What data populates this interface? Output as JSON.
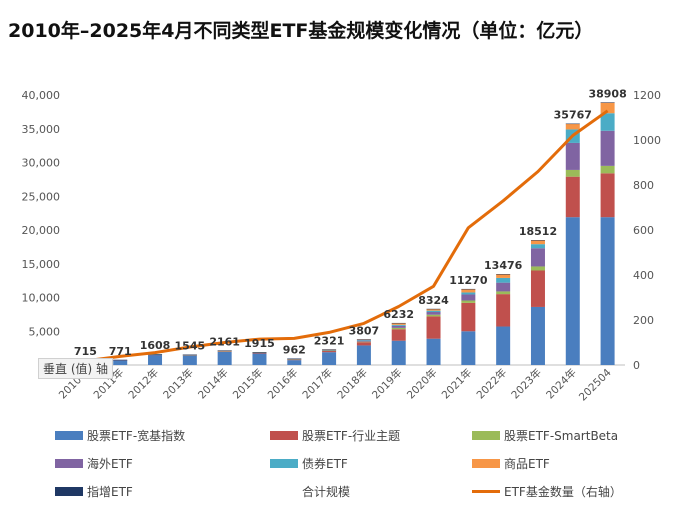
{
  "title": "2010年–2025年4月不同类型ETF基金规模变化情况（单位：亿元）",
  "axis_tag": "垂直 (值) 轴",
  "colors": {
    "broad": "#4a7ebf",
    "industry": "#c0504d",
    "smartbeta": "#9bbb59",
    "overseas": "#8064a2",
    "bond": "#4bacc6",
    "commodity": "#f79646",
    "enhanced": "#1f3864",
    "line": "#e36c0a"
  },
  "chart_data": {
    "type": "bar",
    "categories": [
      "2010年",
      "2011年",
      "2012年",
      "2013年",
      "2014年",
      "2015年",
      "2016年",
      "2017年",
      "2018年",
      "2019年",
      "2020年",
      "2021年",
      "2022年",
      "2023年",
      "2024年",
      "202504"
    ],
    "totals": [
      715,
      771,
      1608,
      1545,
      2161,
      1915,
      962,
      2321,
      3807,
      6232,
      8324,
      11270,
      13476,
      18512,
      35767,
      38908
    ],
    "totals_label": "合计规模",
    "series": [
      {
        "name": "股票ETF-宽基指数",
        "color_key": "broad",
        "values": [
          650,
          700,
          1480,
          1400,
          1950,
          1700,
          720,
          1900,
          2900,
          3600,
          3900,
          5000,
          5700,
          8600,
          21900,
          21900
        ]
      },
      {
        "name": "股票ETF-行业主题",
        "color_key": "industry",
        "values": [
          30,
          30,
          50,
          60,
          100,
          120,
          110,
          200,
          480,
          1700,
          3300,
          4200,
          4800,
          5400,
          6000,
          6500
        ]
      },
      {
        "name": "股票ETF-SmartBeta",
        "color_key": "smartbeta",
        "values": [
          20,
          20,
          30,
          30,
          40,
          30,
          30,
          40,
          80,
          200,
          250,
          350,
          400,
          600,
          1000,
          1100
        ]
      },
      {
        "name": "海外ETF",
        "color_key": "overseas",
        "values": [
          10,
          15,
          30,
          35,
          40,
          40,
          40,
          80,
          150,
          300,
          400,
          900,
          1300,
          2700,
          4000,
          5200
        ]
      },
      {
        "name": "债券ETF",
        "color_key": "bond",
        "values": [
          0,
          0,
          10,
          10,
          20,
          15,
          20,
          50,
          100,
          150,
          200,
          300,
          700,
          600,
          2000,
          2600
        ]
      },
      {
        "name": "商品ETF",
        "color_key": "commodity",
        "values": [
          0,
          0,
          0,
          5,
          5,
          5,
          30,
          40,
          90,
          260,
          250,
          500,
          560,
          580,
          850,
          1600
        ]
      },
      {
        "name": "指增ETF",
        "color_key": "enhanced",
        "values": [
          5,
          6,
          8,
          5,
          6,
          5,
          12,
          11,
          7,
          22,
          24,
          20,
          16,
          32,
          17,
          8
        ]
      }
    ],
    "line_series": {
      "name": "ETF基金数量（右轴）",
      "color_key": "line",
      "values": [
        18,
        38,
        55,
        80,
        100,
        115,
        118,
        145,
        185,
        260,
        350,
        610,
        730,
        860,
        1020,
        1130
      ]
    },
    "ylim": [
      0,
      40000
    ],
    "yticks": [
      "0",
      "5,000",
      "10,000",
      "15,000",
      "20,000",
      "25,000",
      "30,000",
      "35,000",
      "40,000"
    ],
    "y2lim": [
      0,
      1200
    ],
    "y2ticks": [
      "0",
      "200",
      "400",
      "600",
      "800",
      "1000",
      "1200"
    ],
    "legend_position": "bottom"
  }
}
